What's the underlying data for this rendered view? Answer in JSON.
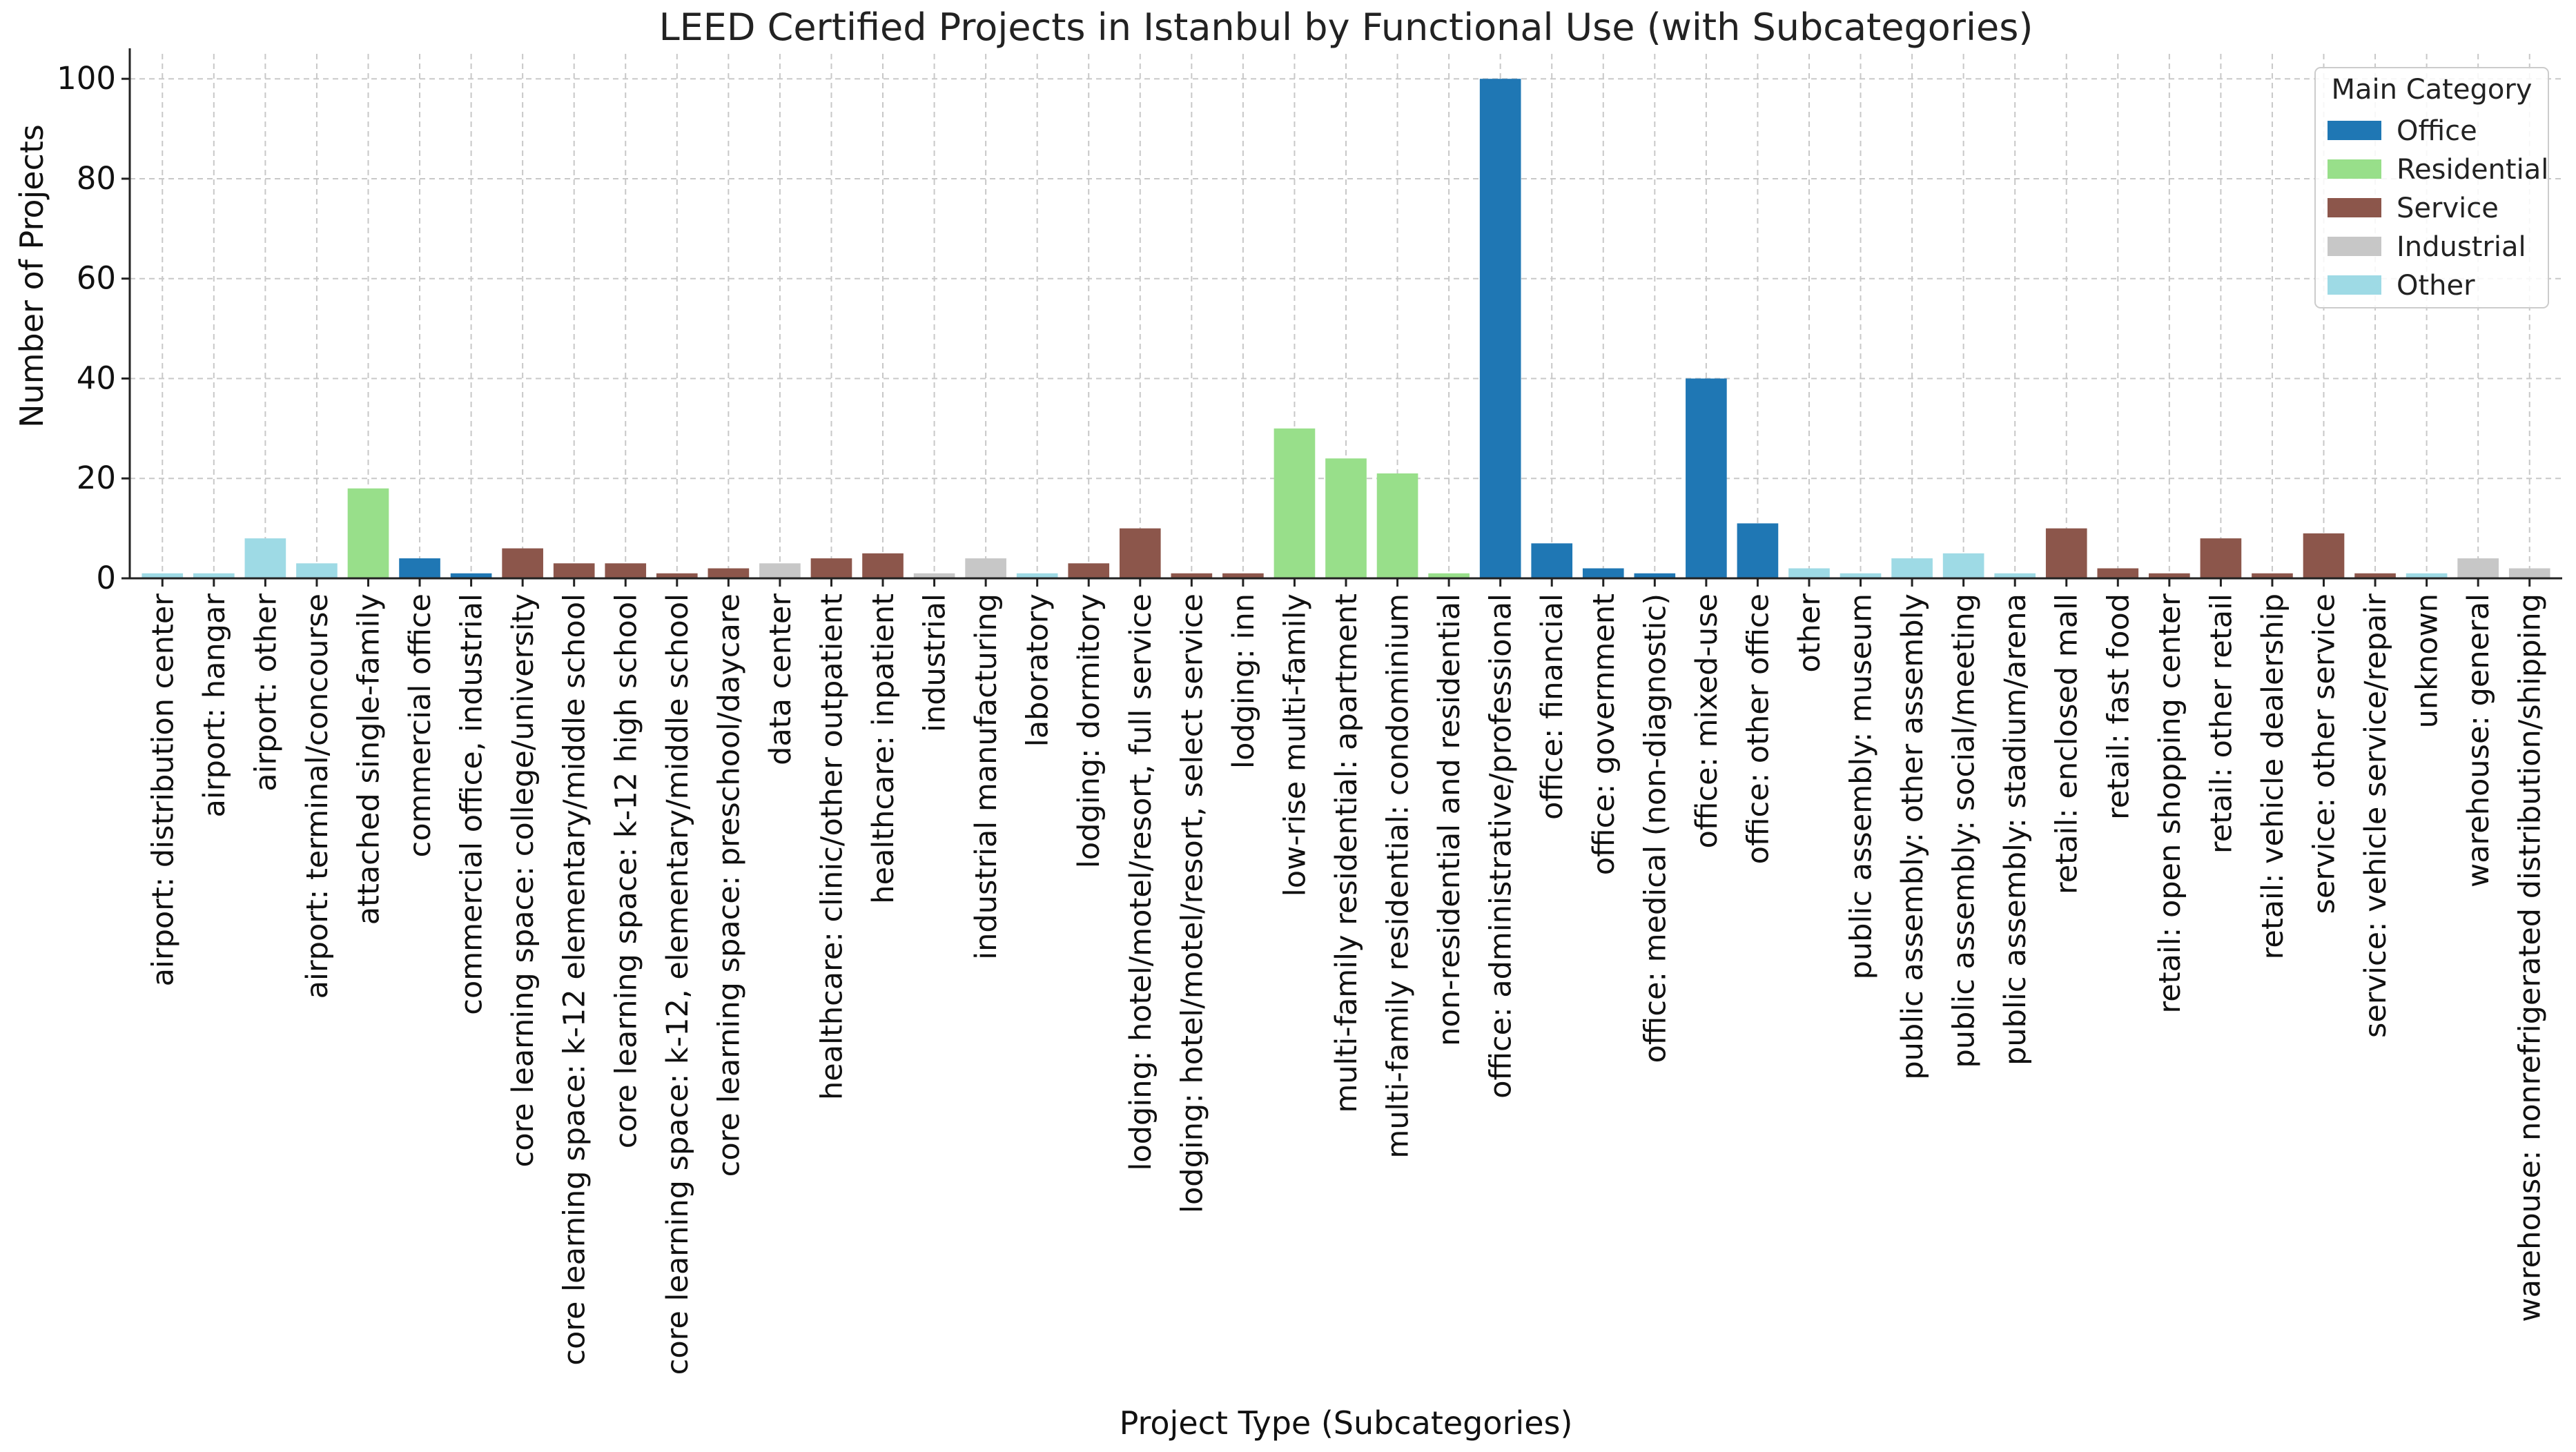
{
  "chart_data": {
    "type": "bar",
    "title": "LEED Certified Projects in Istanbul by Functional Use (with Subcategories)",
    "xlabel": "Project Type (Subcategories)",
    "ylabel": "Number of Projects",
    "ylim": [
      0,
      105
    ],
    "yticks": [
      0,
      20,
      40,
      60,
      80,
      100
    ],
    "grid": true,
    "legend": {
      "title": "Main Category",
      "position": "top-right",
      "entries": [
        {
          "name": "Office",
          "color": "#1f77b4"
        },
        {
          "name": "Residential",
          "color": "#98df8a"
        },
        {
          "name": "Service",
          "color": "#8c564b"
        },
        {
          "name": "Industrial",
          "color": "#c7c7c7"
        },
        {
          "name": "Other",
          "color": "#9edae5"
        }
      ]
    },
    "bars": [
      {
        "label": "airport: distribution center",
        "value": 1,
        "category": "Other"
      },
      {
        "label": "airport: hangar",
        "value": 1,
        "category": "Other"
      },
      {
        "label": "airport: other",
        "value": 8,
        "category": "Other"
      },
      {
        "label": "airport: terminal/concourse",
        "value": 3,
        "category": "Other"
      },
      {
        "label": "attached single-family",
        "value": 18,
        "category": "Residential"
      },
      {
        "label": "commercial office",
        "value": 4,
        "category": "Office"
      },
      {
        "label": "commercial office, industrial",
        "value": 1,
        "category": "Office"
      },
      {
        "label": "core learning space: college/university",
        "value": 6,
        "category": "Service"
      },
      {
        "label": "core learning space: k-12 elementary/middle school",
        "value": 3,
        "category": "Service"
      },
      {
        "label": "core learning space: k-12 high school",
        "value": 3,
        "category": "Service"
      },
      {
        "label": "core learning space: k-12, elementary/middle school",
        "value": 1,
        "category": "Service"
      },
      {
        "label": "core learning space: preschool/daycare",
        "value": 2,
        "category": "Service"
      },
      {
        "label": "data center",
        "value": 3,
        "category": "Industrial"
      },
      {
        "label": "healthcare: clinic/other outpatient",
        "value": 4,
        "category": "Service"
      },
      {
        "label": "healthcare: inpatient",
        "value": 5,
        "category": "Service"
      },
      {
        "label": "industrial",
        "value": 1,
        "category": "Industrial"
      },
      {
        "label": "industrial manufacturing",
        "value": 4,
        "category": "Industrial"
      },
      {
        "label": "laboratory",
        "value": 1,
        "category": "Other"
      },
      {
        "label": "lodging: dormitory",
        "value": 3,
        "category": "Service"
      },
      {
        "label": "lodging: hotel/motel/resort, full service",
        "value": 10,
        "category": "Service"
      },
      {
        "label": "lodging: hotel/motel/resort, select service",
        "value": 1,
        "category": "Service"
      },
      {
        "label": "lodging: inn",
        "value": 1,
        "category": "Service"
      },
      {
        "label": "low-rise multi-family",
        "value": 30,
        "category": "Residential"
      },
      {
        "label": "multi-family residential: apartment",
        "value": 24,
        "category": "Residential"
      },
      {
        "label": "multi-family residential: condominium",
        "value": 21,
        "category": "Residential"
      },
      {
        "label": "non-residential and residential",
        "value": 1,
        "category": "Residential"
      },
      {
        "label": "office: administrative/professional",
        "value": 100,
        "category": "Office"
      },
      {
        "label": "office: financial",
        "value": 7,
        "category": "Office"
      },
      {
        "label": "office: government",
        "value": 2,
        "category": "Office"
      },
      {
        "label": "office: medical (non-diagnostic)",
        "value": 1,
        "category": "Office"
      },
      {
        "label": "office: mixed-use",
        "value": 40,
        "category": "Office"
      },
      {
        "label": "office: other office",
        "value": 11,
        "category": "Office"
      },
      {
        "label": "other",
        "value": 2,
        "category": "Other"
      },
      {
        "label": "public assembly: museum",
        "value": 1,
        "category": "Other"
      },
      {
        "label": "public assembly: other assembly",
        "value": 4,
        "category": "Other"
      },
      {
        "label": "public assembly: social/meeting",
        "value": 5,
        "category": "Other"
      },
      {
        "label": "public assembly: stadium/arena",
        "value": 1,
        "category": "Other"
      },
      {
        "label": "retail: enclosed mall",
        "value": 10,
        "category": "Service"
      },
      {
        "label": "retail: fast food",
        "value": 2,
        "category": "Service"
      },
      {
        "label": "retail: open shopping center",
        "value": 1,
        "category": "Service"
      },
      {
        "label": "retail: other retail",
        "value": 8,
        "category": "Service"
      },
      {
        "label": "retail: vehicle dealership",
        "value": 1,
        "category": "Service"
      },
      {
        "label": "service: other service",
        "value": 9,
        "category": "Service"
      },
      {
        "label": "service: vehicle service/repair",
        "value": 1,
        "category": "Service"
      },
      {
        "label": "unknown",
        "value": 1,
        "category": "Other"
      },
      {
        "label": "warehouse: general",
        "value": 4,
        "category": "Industrial"
      },
      {
        "label": "warehouse: nonrefrigerated distribution/shipping",
        "value": 2,
        "category": "Industrial"
      }
    ]
  }
}
